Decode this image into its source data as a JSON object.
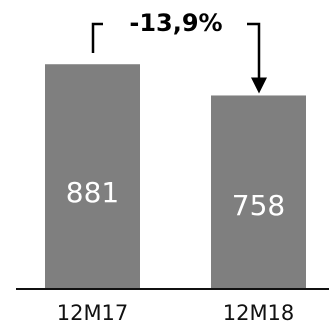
{
  "chart_data": {
    "type": "bar",
    "categories": [
      "12M17",
      "12M18"
    ],
    "values": [
      881,
      758
    ],
    "data_labels": [
      "881",
      "758"
    ],
    "change_annotation": "-13,9%",
    "ylim": [
      0,
      1000
    ],
    "grid": false,
    "legend": "none",
    "colors": {
      "bar": "#7f7f7f",
      "bar_label": "#ffffff",
      "axis": "#111111",
      "annotation": "#000000"
    }
  }
}
